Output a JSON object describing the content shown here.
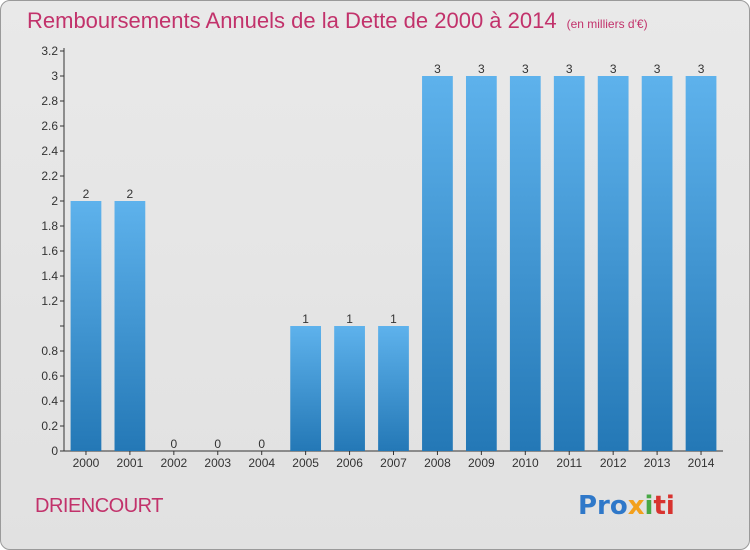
{
  "header": {
    "title": "Remboursements Annuels de la Dette de 2000 à 2014",
    "subtitle": "(en milliers d'€)"
  },
  "footer": {
    "commune": "DRIENCOURT",
    "logo": [
      "Pro",
      "x",
      "i",
      "ti"
    ]
  },
  "colors": {
    "bar_top": "#5eb2ec",
    "bar_bottom": "#2478b6",
    "title": "#c2326b",
    "axis": "#333333"
  },
  "chart_data": {
    "type": "bar",
    "title": "Remboursements Annuels de la Dette de 2000 à 2014",
    "subtitle": "(en milliers d'€)",
    "categories": [
      "2000",
      "2001",
      "2002",
      "2003",
      "2004",
      "2005",
      "2006",
      "2007",
      "2008",
      "2009",
      "2010",
      "2011",
      "2012",
      "2013",
      "2014"
    ],
    "values": [
      2,
      2,
      0,
      0,
      0,
      1,
      1,
      1,
      3,
      3,
      3,
      3,
      3,
      3,
      3
    ],
    "data_labels": [
      "2",
      "2",
      "0",
      "0",
      "0",
      "1",
      "1",
      "1",
      "3",
      "3",
      "3",
      "3",
      "3",
      "3",
      "3"
    ],
    "ylim": [
      0,
      3.2
    ],
    "yticks": [
      0,
      0.2,
      0.4,
      0.6,
      0.8,
      1,
      1.2,
      1.4,
      1.6,
      1.8,
      2,
      2.2,
      2.4,
      2.6,
      2.8,
      3,
      3.2
    ],
    "ytick_labels": [
      "0",
      "0.2",
      "0.4",
      "0.6",
      "0.8",
      "",
      "1.2",
      "1.4",
      "1.6",
      "1.8",
      "2",
      "2.2",
      "2.4",
      "2.6",
      "2.8",
      "3",
      "3.2"
    ],
    "xlabel": "",
    "ylabel": "",
    "grid": false,
    "legend": false
  }
}
